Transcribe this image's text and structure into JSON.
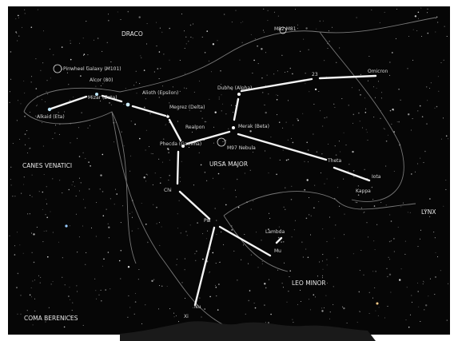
{
  "labels": {
    "draco": "DRACO",
    "m82_m81": "M82 M81",
    "m101": "Pinwheel Galaxy (M101)",
    "alkaid": "Alkaid (Eta)",
    "alcor": "Alcor (80)",
    "mizar": "Mizar (Zeta)",
    "alioth": "Alioth (Epsilon)",
    "megrez": "Megrez (Delta)",
    "phecda": "Phecda (Gamma)",
    "dubhe": "Dubhe (Alpha)",
    "merak": "Merak (Beta)",
    "m97": "M97 Nebula",
    "realpon": "Realpon",
    "n23": "23",
    "omicron": "Omicron",
    "theta": "Theta",
    "iota": "Iota",
    "kappa": "Kappa",
    "chi": "Chi",
    "psi": "Psi",
    "lambda": "Lambda",
    "mu": "Mu",
    "nu": "Nu",
    "xi": "Xi",
    "canes": "CANES VENATICI",
    "ursa": "URSA MAJOR",
    "lynx": "LYNX",
    "leo": "LEO MINOR",
    "coma": "COMA BERENICES"
  }
}
